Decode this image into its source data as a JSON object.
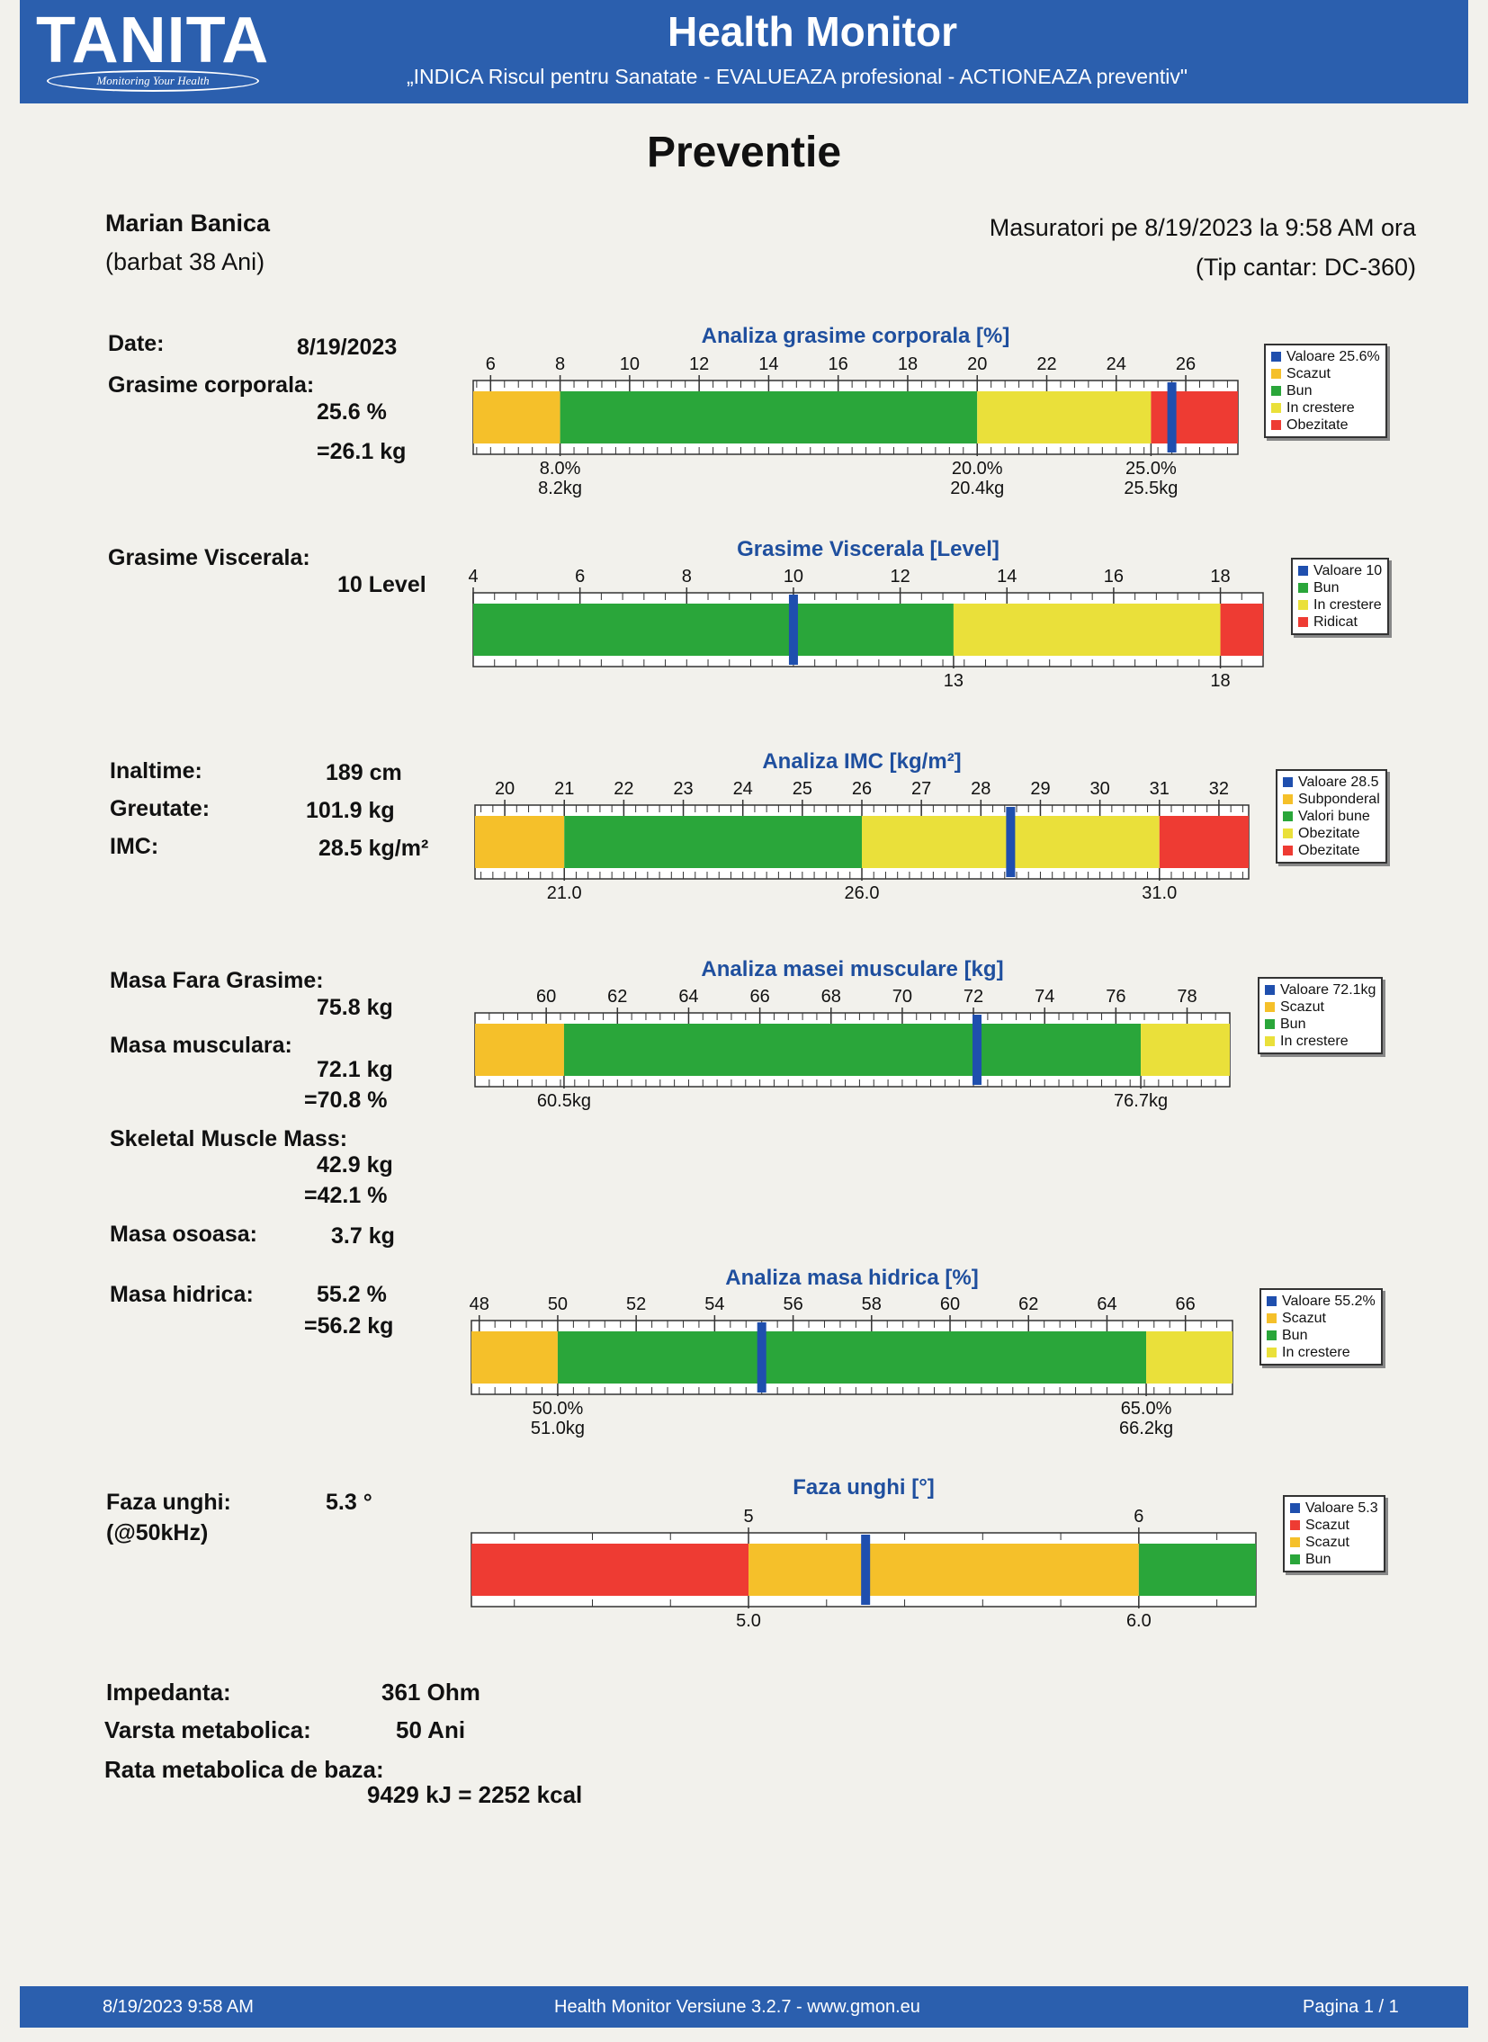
{
  "header": {
    "brand": "TANITA",
    "brand_tagline": "Monitoring Your Health",
    "title": "Health Monitor",
    "subtitle": "„INDICA Riscul pentru Sanatate - EVALUEAZA profesional - ACTIONEAZA preventiv\""
  },
  "page_title": "Preventie",
  "person": {
    "name": "Marian Banica",
    "details": "(barbat 38 Ani)"
  },
  "measurement": {
    "line1": "Masuratori pe 8/19/2023 la 9:58 AM ora",
    "line2": "(Tip cantar: DC-360)"
  },
  "fat": {
    "date_label": "Date:",
    "date_value": "8/19/2023",
    "label": "Grasime corporala:",
    "percent": "25.6 %",
    "kg": "=26.1 kg"
  },
  "visceral": {
    "label": "Grasime Viscerala:",
    "value": "10 Level"
  },
  "body": {
    "height_label": "Inaltime:",
    "height": "189 cm",
    "weight_label": "Greutate:",
    "weight": "101.9 kg",
    "imc_label": "IMC:",
    "imc": "28.5 kg/m²"
  },
  "muscle": {
    "lean_label": "Masa Fara Grasime:",
    "lean": "75.8 kg",
    "muscle_label": "Masa musculara:",
    "muscle_kg": "72.1 kg",
    "muscle_pct": "=70.8 %",
    "skeletal_label": "Skeletal Muscle Mass:",
    "skeletal_kg": "42.9 kg",
    "skeletal_pct": "=42.1 %",
    "bone_label": "Masa osoasa:",
    "bone": "3.7 kg"
  },
  "water": {
    "label": "Masa hidrica:",
    "pct": "55.2 %",
    "kg": "=56.2 kg"
  },
  "phase": {
    "label": "Faza unghi:",
    "freq": "(@50kHz)",
    "value": "5.3 °"
  },
  "bottom": {
    "impedance_label": "Impedanta:",
    "impedance": "361 Ohm",
    "meta_age_label": "Varsta metabolica:",
    "meta_age": "50 Ani",
    "bmr_label": "Rata metabolica de baza:",
    "bmr": "9429 kJ = 2252 kcal"
  },
  "footer": {
    "date": "8/19/2023 9:58 AM",
    "version": "Health Monitor Versiune 3.2.7 - www.gmon.eu",
    "page": "Pagina 1 / 1"
  },
  "colors": {
    "yellow_orange": "#f5c02a",
    "green": "#2aa63a",
    "yellow": "#eae03a",
    "red": "#ee3b33",
    "marker": "#1f4fae",
    "header": "#2b5fae"
  },
  "chart_data": [
    {
      "type": "bar",
      "title": "Analiza grasime corporala [%]",
      "xlim": [
        5.5,
        27.5
      ],
      "ticks": [
        6,
        8,
        10,
        12,
        14,
        16,
        18,
        20,
        22,
        24,
        26
      ],
      "value": 25.6,
      "segments": [
        {
          "from": 5.5,
          "to": 8,
          "color": "#f5c02a"
        },
        {
          "from": 8,
          "to": 20,
          "color": "#2aa63a"
        },
        {
          "from": 20,
          "to": 25,
          "color": "#eae03a"
        },
        {
          "from": 25,
          "to": 27.5,
          "color": "#ee3b33"
        }
      ],
      "thresholds": [
        {
          "at": 8,
          "line1": "8.0%",
          "line2": "8.2kg"
        },
        {
          "at": 20,
          "line1": "20.0%",
          "line2": "20.4kg"
        },
        {
          "at": 25,
          "line1": "25.0%",
          "line2": "25.5kg"
        }
      ],
      "legend": [
        {
          "label": "Valoare 25.6%",
          "color": "#1f4fae"
        },
        {
          "label": "Scazut",
          "color": "#f5c02a"
        },
        {
          "label": "Bun",
          "color": "#2aa63a"
        },
        {
          "label": "In crestere",
          "color": "#eae03a"
        },
        {
          "label": "Obezitate",
          "color": "#ee3b33"
        }
      ]
    },
    {
      "type": "bar",
      "title": "Grasime Viscerala [Level]",
      "xlim": [
        4,
        18.8
      ],
      "ticks": [
        4,
        6,
        8,
        10,
        12,
        14,
        16,
        18
      ],
      "value": 10,
      "segments": [
        {
          "from": 4,
          "to": 13,
          "color": "#2aa63a"
        },
        {
          "from": 13,
          "to": 18,
          "color": "#eae03a"
        },
        {
          "from": 18,
          "to": 18.8,
          "color": "#ee3b33"
        }
      ],
      "thresholds": [
        {
          "at": 13,
          "line1": "13",
          "line2": ""
        },
        {
          "at": 18,
          "line1": "18",
          "line2": ""
        }
      ],
      "legend": [
        {
          "label": "Valoare 10",
          "color": "#1f4fae"
        },
        {
          "label": "Bun",
          "color": "#2aa63a"
        },
        {
          "label": "In crestere",
          "color": "#eae03a"
        },
        {
          "label": "Ridicat",
          "color": "#ee3b33"
        }
      ]
    },
    {
      "type": "bar",
      "title": "Analiza IMC [kg/m²]",
      "xlim": [
        19.5,
        32.5
      ],
      "ticks": [
        20,
        21,
        22,
        23,
        24,
        25,
        26,
        27,
        28,
        29,
        30,
        31,
        32
      ],
      "value": 28.5,
      "segments": [
        {
          "from": 19.5,
          "to": 21,
          "color": "#f5c02a"
        },
        {
          "from": 21,
          "to": 26,
          "color": "#2aa63a"
        },
        {
          "from": 26,
          "to": 31,
          "color": "#eae03a"
        },
        {
          "from": 31,
          "to": 32.5,
          "color": "#ee3b33"
        }
      ],
      "thresholds": [
        {
          "at": 21,
          "line1": "21.0",
          "line2": ""
        },
        {
          "at": 26,
          "line1": "26.0",
          "line2": ""
        },
        {
          "at": 31,
          "line1": "31.0",
          "line2": ""
        }
      ],
      "legend": [
        {
          "label": "Valoare 28.5",
          "color": "#1f4fae"
        },
        {
          "label": "Subponderal",
          "color": "#f5c02a"
        },
        {
          "label": "Valori bune",
          "color": "#2aa63a"
        },
        {
          "label": "Obezitate",
          "color": "#eae03a"
        },
        {
          "label": "Obezitate",
          "color": "#ee3b33"
        }
      ]
    },
    {
      "type": "bar",
      "title": "Analiza masei musculare [kg]",
      "xlim": [
        58,
        79.2
      ],
      "ticks": [
        60,
        62,
        64,
        66,
        68,
        70,
        72,
        74,
        76,
        78
      ],
      "value": 72.1,
      "segments": [
        {
          "from": 58,
          "to": 60.5,
          "color": "#f5c02a"
        },
        {
          "from": 60.5,
          "to": 76.7,
          "color": "#2aa63a"
        },
        {
          "from": 76.7,
          "to": 79.2,
          "color": "#eae03a"
        }
      ],
      "thresholds": [
        {
          "at": 60.5,
          "line1": "60.5kg",
          "line2": ""
        },
        {
          "at": 76.7,
          "line1": "76.7kg",
          "line2": ""
        }
      ],
      "legend": [
        {
          "label": "Valoare 72.1kg",
          "color": "#1f4fae"
        },
        {
          "label": "Scazut",
          "color": "#f5c02a"
        },
        {
          "label": "Bun",
          "color": "#2aa63a"
        },
        {
          "label": "In crestere",
          "color": "#eae03a"
        }
      ]
    },
    {
      "type": "bar",
      "title": "Analiza masa hidrica [%]",
      "xlim": [
        47.8,
        67.2
      ],
      "ticks": [
        48,
        50,
        52,
        54,
        56,
        58,
        60,
        62,
        64,
        66
      ],
      "value": 55.2,
      "segments": [
        {
          "from": 47.8,
          "to": 50,
          "color": "#f5c02a"
        },
        {
          "from": 50,
          "to": 65,
          "color": "#2aa63a"
        },
        {
          "from": 65,
          "to": 67.2,
          "color": "#eae03a"
        }
      ],
      "thresholds": [
        {
          "at": 50,
          "line1": "50.0%",
          "line2": "51.0kg"
        },
        {
          "at": 65,
          "line1": "65.0%",
          "line2": "66.2kg"
        }
      ],
      "legend": [
        {
          "label": "Valoare 55.2%",
          "color": "#1f4fae"
        },
        {
          "label": "Scazut",
          "color": "#f5c02a"
        },
        {
          "label": "Bun",
          "color": "#2aa63a"
        },
        {
          "label": "In crestere",
          "color": "#eae03a"
        }
      ]
    },
    {
      "type": "bar",
      "title": "Faza unghi [°]",
      "xlim": [
        4.29,
        6.3
      ],
      "ticks": [
        5,
        6
      ],
      "value": 5.3,
      "segments": [
        {
          "from": 4.29,
          "to": 5,
          "color": "#ee3b33"
        },
        {
          "from": 5,
          "to": 6,
          "color": "#f5c02a"
        },
        {
          "from": 6,
          "to": 6.3,
          "color": "#2aa63a"
        }
      ],
      "thresholds": [
        {
          "at": 5,
          "line1": "5.0",
          "line2": ""
        },
        {
          "at": 6,
          "line1": "6.0",
          "line2": ""
        }
      ],
      "legend": [
        {
          "label": "Valoare 5.3",
          "color": "#1f4fae"
        },
        {
          "label": "Scazut",
          "color": "#ee3b33"
        },
        {
          "label": "Scazut",
          "color": "#f5c02a"
        },
        {
          "label": "Bun",
          "color": "#2aa63a"
        }
      ]
    }
  ]
}
